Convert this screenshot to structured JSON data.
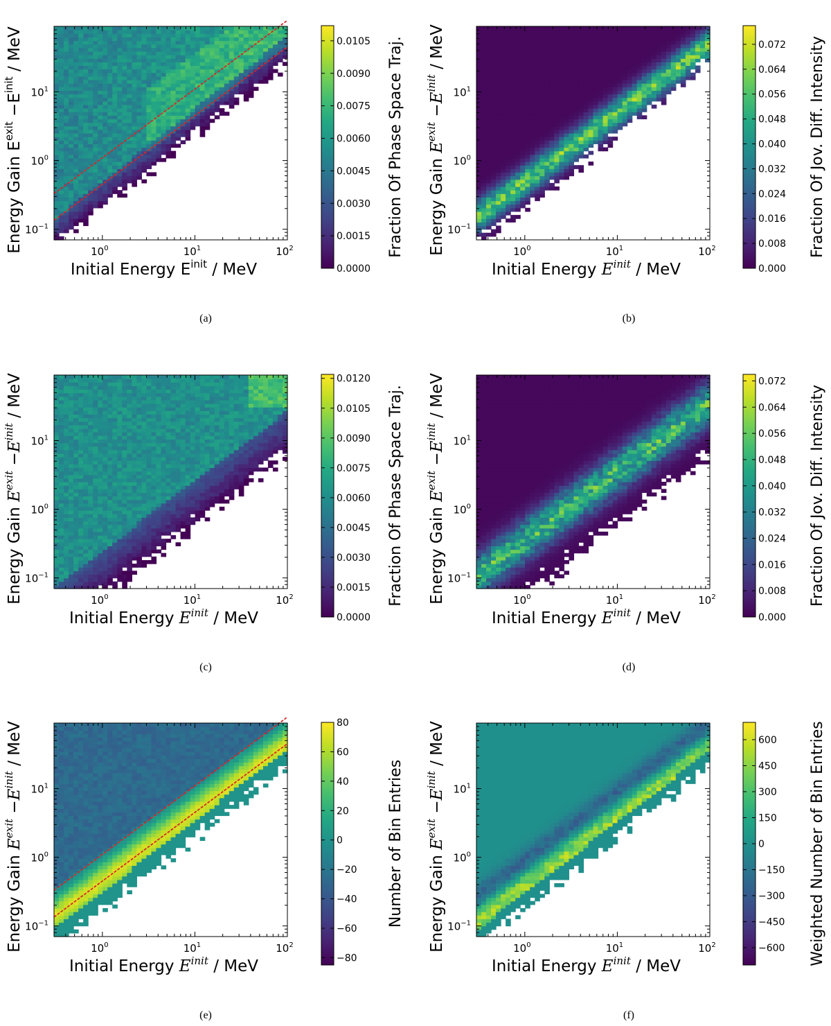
{
  "figure": {
    "panels": [
      {
        "id": "a",
        "caption": "(a)",
        "ylabel": "Energy Gain E",
        "ylabel_sup1": "exit",
        "ylabel_mid": " −E",
        "ylabel_sup2": "init",
        "ylabel_unit": "  / MeV",
        "xlabel": "Initial Energy E",
        "xlabel_sup": "init",
        "xlabel_unit": "  / MeV",
        "label_style": "plain",
        "cbar_label": "Fraction Of Phase Space Traj.",
        "colormap": "viridis"
      },
      {
        "id": "b",
        "caption": "(b)",
        "ylabel": "Energy Gain E",
        "ylabel_sup1": "exit",
        "ylabel_mid": " −E",
        "ylabel_sup2": "init",
        "ylabel_unit": "  / MeV",
        "xlabel": "Initial Energy E",
        "xlabel_sup": "init",
        "xlabel_unit": "  / MeV",
        "label_style": "math",
        "cbar_label": "Fraction Of Jov. Diff. Intensity",
        "colormap": "viridis"
      },
      {
        "id": "c",
        "caption": "(c)",
        "ylabel": "Energy Gain E",
        "ylabel_sup1": "exit",
        "ylabel_mid": " −E",
        "ylabel_sup2": "init",
        "ylabel_unit": "  / MeV",
        "xlabel": "Initial Energy E",
        "xlabel_sup": "init",
        "xlabel_unit": "  / MeV",
        "label_style": "math",
        "cbar_label": "Fraction Of Phase Space Traj.",
        "colormap": "viridis"
      },
      {
        "id": "d",
        "caption": "(d)",
        "ylabel": "Energy Gain E",
        "ylabel_sup1": "exit",
        "ylabel_mid": " −E",
        "ylabel_sup2": "init",
        "ylabel_unit": "  / MeV",
        "xlabel": "Initial Energy E",
        "xlabel_sup": "init",
        "xlabel_unit": "  / MeV",
        "label_style": "math",
        "cbar_label": "Fraction Of Jov. Diff. Intensity",
        "colormap": "viridis"
      },
      {
        "id": "e",
        "caption": "(e)",
        "ylabel": "Energy Gain E",
        "ylabel_sup1": "exit",
        "ylabel_mid": " −E",
        "ylabel_sup2": "init",
        "ylabel_unit": "  / MeV",
        "xlabel": "Initial Energy E",
        "xlabel_sup": "init",
        "xlabel_unit": "  / MeV",
        "label_style": "math",
        "cbar_label": "Number of Bin Entries",
        "colormap": "viridis"
      },
      {
        "id": "f",
        "caption": "(f)",
        "ylabel": "Energy Gain E",
        "ylabel_sup1": "exit",
        "ylabel_mid": " −E",
        "ylabel_sup2": "init",
        "ylabel_unit": "  / MeV",
        "xlabel": "Initial Energy E",
        "xlabel_sup": "init",
        "xlabel_unit": "  / MeV",
        "label_style": "math",
        "cbar_label": "Weighted Number of Bin Entries",
        "colormap": "viridis"
      }
    ]
  },
  "chart_data": [
    {
      "type": "heatmap",
      "panel": "a",
      "xscale": "log",
      "yscale": "log",
      "xlim": [
        0.3,
        100
      ],
      "ylim": [
        0.07,
        90
      ],
      "xticks": [
        1,
        10,
        100
      ],
      "xtick_labels": [
        "10",
        "10",
        "10"
      ],
      "xtick_exps": [
        "0",
        "1",
        "2"
      ],
      "yticks": [
        0.1,
        1,
        10
      ],
      "ytick_labels": [
        "10",
        "10",
        "10"
      ],
      "ytick_exps": [
        "−1",
        "0",
        "1"
      ],
      "cbar_range": [
        0,
        0.0112
      ],
      "cbar_ticks": [
        0.0,
        0.0015,
        0.003,
        0.0045,
        0.006,
        0.0075,
        0.009,
        0.0105
      ],
      "cbar_tick_labels": [
        "0.0000",
        "0.0015",
        "0.0030",
        "0.0045",
        "0.0060",
        "0.0075",
        "0.0090",
        "0.0105"
      ],
      "pattern": "uniform",
      "dashed_lines": [
        {
          "slope": 1,
          "y_at_x1": 1.1
        },
        {
          "slope": 1,
          "y_at_x1": 0.45
        }
      ],
      "line_color": "#d62728"
    },
    {
      "type": "heatmap",
      "panel": "b",
      "xscale": "log",
      "yscale": "log",
      "xlim": [
        0.3,
        100
      ],
      "ylim": [
        0.07,
        90
      ],
      "xticks": [
        1,
        10,
        100
      ],
      "xtick_labels": [
        "10",
        "10",
        "10"
      ],
      "xtick_exps": [
        "0",
        "1",
        "2"
      ],
      "yticks": [
        0.1,
        1,
        10
      ],
      "ytick_labels": [
        "10",
        "10",
        "10"
      ],
      "ytick_exps": [
        "−1",
        "0",
        "1"
      ],
      "cbar_range": [
        0,
        0.078
      ],
      "cbar_ticks": [
        0.0,
        0.008,
        0.016,
        0.024,
        0.032,
        0.04,
        0.048,
        0.056,
        0.064,
        0.072
      ],
      "cbar_tick_labels": [
        "0.000",
        "0.008",
        "0.016",
        "0.024",
        "0.032",
        "0.040",
        "0.048",
        "0.056",
        "0.064",
        "0.072"
      ],
      "pattern": "band",
      "dashed_lines": []
    },
    {
      "type": "heatmap",
      "panel": "c",
      "xscale": "log",
      "yscale": "log",
      "xlim": [
        0.3,
        100
      ],
      "ylim": [
        0.07,
        90
      ],
      "xticks": [
        1,
        10,
        100
      ],
      "xtick_labels": [
        "10",
        "10",
        "10"
      ],
      "xtick_exps": [
        "0",
        "1",
        "2"
      ],
      "yticks": [
        0.1,
        1,
        10
      ],
      "ytick_labels": [
        "10",
        "10",
        "10"
      ],
      "ytick_exps": [
        "−1",
        "0",
        "1"
      ],
      "cbar_range": [
        0,
        0.0122
      ],
      "cbar_ticks": [
        0.0,
        0.0015,
        0.003,
        0.0045,
        0.006,
        0.0075,
        0.009,
        0.0105,
        0.012
      ],
      "cbar_tick_labels": [
        "0.0000",
        "0.0015",
        "0.0030",
        "0.0045",
        "0.0060",
        "0.0075",
        "0.0090",
        "0.0105",
        "0.0120"
      ],
      "pattern": "uniform_wide",
      "dashed_lines": []
    },
    {
      "type": "heatmap",
      "panel": "d",
      "xscale": "log",
      "yscale": "log",
      "xlim": [
        0.3,
        100
      ],
      "ylim": [
        0.07,
        90
      ],
      "xticks": [
        1,
        10,
        100
      ],
      "xtick_labels": [
        "10",
        "10",
        "10"
      ],
      "xtick_exps": [
        "0",
        "1",
        "2"
      ],
      "yticks": [
        0.1,
        1,
        10
      ],
      "ytick_labels": [
        "10",
        "10",
        "10"
      ],
      "ytick_exps": [
        "−1",
        "0",
        "1"
      ],
      "cbar_range": [
        0,
        0.074
      ],
      "cbar_ticks": [
        0.0,
        0.008,
        0.016,
        0.024,
        0.032,
        0.04,
        0.048,
        0.056,
        0.064,
        0.072
      ],
      "cbar_tick_labels": [
        "0.000",
        "0.008",
        "0.016",
        "0.024",
        "0.032",
        "0.040",
        "0.048",
        "0.056",
        "0.064",
        "0.072"
      ],
      "pattern": "band_wide",
      "dashed_lines": []
    },
    {
      "type": "heatmap",
      "panel": "e",
      "xscale": "log",
      "yscale": "log",
      "xlim": [
        0.3,
        100
      ],
      "ylim": [
        0.07,
        90
      ],
      "xticks": [
        1,
        10,
        100
      ],
      "xtick_labels": [
        "10",
        "10",
        "10"
      ],
      "xtick_exps": [
        "0",
        "1",
        "2"
      ],
      "yticks": [
        0.1,
        1,
        10
      ],
      "ytick_labels": [
        "10",
        "10",
        "10"
      ],
      "ytick_exps": [
        "−1",
        "0",
        "1"
      ],
      "cbar_range": [
        -85,
        80
      ],
      "cbar_ticks": [
        -80,
        -60,
        -40,
        -20,
        0,
        20,
        40,
        60,
        80
      ],
      "cbar_tick_labels": [
        "−80",
        "−60",
        "−40",
        "−20",
        "0",
        "20",
        "40",
        "60",
        "80"
      ],
      "pattern": "diff",
      "dashed_lines": [
        {
          "slope": 1,
          "y_at_x1": 1.1
        },
        {
          "slope": 1,
          "y_at_x1": 0.45
        }
      ],
      "line_color": "#d62728"
    },
    {
      "type": "heatmap",
      "panel": "f",
      "xscale": "log",
      "yscale": "log",
      "xlim": [
        0.3,
        100
      ],
      "ylim": [
        0.07,
        90
      ],
      "xticks": [
        1,
        10,
        100
      ],
      "xtick_labels": [
        "10",
        "10",
        "10"
      ],
      "xtick_exps": [
        "0",
        "1",
        "2"
      ],
      "yticks": [
        0.1,
        1,
        10
      ],
      "ytick_labels": [
        "10",
        "10",
        "10"
      ],
      "ytick_exps": [
        "−1",
        "0",
        "1"
      ],
      "cbar_range": [
        -700,
        700
      ],
      "cbar_ticks": [
        -600,
        -450,
        -300,
        -150,
        0,
        150,
        300,
        450,
        600
      ],
      "cbar_tick_labels": [
        "−600",
        "−450",
        "−300",
        "−150",
        "0",
        "150",
        "300",
        "450",
        "600"
      ],
      "pattern": "wdiff",
      "dashed_lines": []
    }
  ]
}
